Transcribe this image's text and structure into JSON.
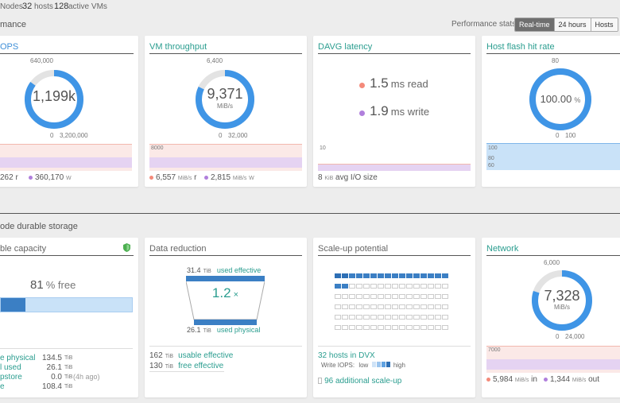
{
  "topbar": {
    "nodes_label": "Nodes",
    "hosts_count": "32",
    "hosts_label": "hosts",
    "vms_count": "128",
    "vms_label": "active VMs"
  },
  "performance": {
    "section_title": "mance",
    "stats_label": "Performance stats:",
    "buttons": [
      "Real-time",
      "24 hours",
      "Hosts"
    ],
    "active_button": "Real-time"
  },
  "iops": {
    "title": "OPS",
    "max_label": "640,000",
    "value": "1,199k",
    "min_label": "0",
    "range_max": "3,200,000",
    "read_value": "262",
    "read_unit": "r",
    "write_value": "360,170",
    "write_unit": "W",
    "gauge_fraction": 0.85
  },
  "throughput": {
    "title": "VM throughput",
    "max_label": "6,400",
    "value": "9,371",
    "unit": "MiB/s",
    "min_label": "0",
    "range_max": "32,000",
    "chart_label": "8000",
    "read_value": "6,557",
    "read_unit_small": "MiB/s",
    "read_unit": "r",
    "write_value": "2,815",
    "write_unit_small": "MiB/s",
    "write_unit": "W",
    "gauge_fraction": 0.82
  },
  "davg": {
    "title": "DAVG latency",
    "read_value": "1.5",
    "read_unit": "ms read",
    "write_value": "1.9",
    "write_unit": "ms write",
    "chart_label": "10",
    "io_value": "8",
    "io_unit": "KiB",
    "io_label": "avg I/O size"
  },
  "flash": {
    "title": "Host flash hit rate",
    "max_label": "80",
    "value": "100.00",
    "unit": "%",
    "min_label": "0",
    "range_max": "100",
    "chart_label_1": "100",
    "chart_label_2": "80",
    "chart_label_3": "60",
    "gauge_fraction": 1.0
  },
  "storage": {
    "section_title": "ode durable storage"
  },
  "capacity": {
    "title": "ble capacity",
    "free_value": "81",
    "free_unit": "% free",
    "used_fraction": 0.19,
    "rows": [
      {
        "label": "e physical",
        "value": "134.5",
        "unit": "TiB",
        "note": ""
      },
      {
        "label": "l used",
        "value": "26.1",
        "unit": "TiB",
        "note": ""
      },
      {
        "label": "pstore",
        "value": "0.0",
        "unit": "TiB",
        "note": "(4h ago)"
      },
      {
        "label": "e",
        "value": "108.4",
        "unit": "TiB",
        "note": ""
      }
    ]
  },
  "reduction": {
    "title": "Data reduction",
    "top_value": "31.4",
    "top_unit": "TiB",
    "top_label": "used effective",
    "ratio": "1.2",
    "ratio_unit": "×",
    "bottom_value": "26.1",
    "bottom_unit": "TiB",
    "bottom_label": "used physical",
    "usable_value": "162",
    "usable_unit": "TiB",
    "usable_label": "usable effective",
    "free_value": "130",
    "free_unit": "TiB",
    "free_label": "free effective"
  },
  "scaleup": {
    "title": "Scale-up potential",
    "hosts_label": "32 hosts in DVX",
    "write_iops_label": "Write IOPS:",
    "low_label": "low",
    "high_label": "high",
    "additional_label": "96 additional scale-up"
  },
  "network": {
    "title": "Network",
    "max_label": "6,000",
    "value": "7,328",
    "unit": "MiB/s",
    "min_label": "0",
    "range_max": "24,000",
    "chart_label": "7000",
    "in_value": "5,984",
    "in_unit_small": "MiB/s",
    "in_unit": "in",
    "out_value": "1,344",
    "out_unit_small": "MiB/s",
    "out_unit": "out",
    "gauge_fraction": 0.8
  },
  "colors": {
    "gauge": "#3f95e6",
    "track": "#e3e3e3",
    "read": "#f48a7a",
    "write": "#b07fdc",
    "teal": "#2a9d8f"
  }
}
